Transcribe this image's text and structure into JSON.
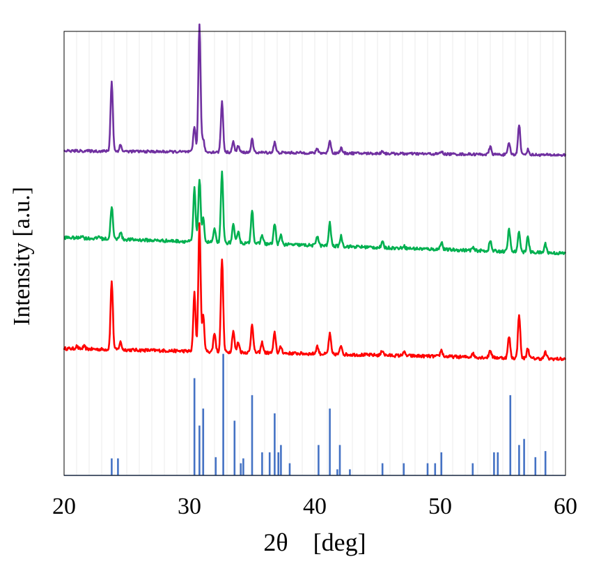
{
  "chart_data": {
    "type": "line",
    "xlabel": "2θ　[deg]",
    "ylabel": "Intensity [a.u.]",
    "xlim": [
      20,
      60
    ],
    "x_ticks": [
      20,
      30,
      40,
      50,
      60
    ],
    "grid": "vertical minor gridlines every 1 deg",
    "y_tick_labels": false,
    "colors": {
      "reference": "#4472C4",
      "sample_red": "#FF0000",
      "sample_green": "#00B050",
      "sample_purple": "#7030A0"
    },
    "reference_pattern": {
      "color": "#4472C4",
      "baseline": 0,
      "sticks": [
        {
          "x": 23.8,
          "y": 14
        },
        {
          "x": 24.3,
          "y": 14
        },
        {
          "x": 30.4,
          "y": 80
        },
        {
          "x": 30.8,
          "y": 41
        },
        {
          "x": 31.1,
          "y": 55
        },
        {
          "x": 32.1,
          "y": 15
        },
        {
          "x": 32.7,
          "y": 100
        },
        {
          "x": 33.6,
          "y": 45
        },
        {
          "x": 34.1,
          "y": 10
        },
        {
          "x": 34.3,
          "y": 14
        },
        {
          "x": 35.0,
          "y": 66
        },
        {
          "x": 35.8,
          "y": 19
        },
        {
          "x": 36.4,
          "y": 19
        },
        {
          "x": 36.8,
          "y": 51
        },
        {
          "x": 37.1,
          "y": 19
        },
        {
          "x": 37.3,
          "y": 25
        },
        {
          "x": 38.0,
          "y": 10
        },
        {
          "x": 40.3,
          "y": 25
        },
        {
          "x": 41.8,
          "y": 5
        },
        {
          "x": 41.2,
          "y": 55
        },
        {
          "x": 42.0,
          "y": 25
        },
        {
          "x": 42.8,
          "y": 5
        },
        {
          "x": 45.4,
          "y": 10
        },
        {
          "x": 47.1,
          "y": 10
        },
        {
          "x": 49.0,
          "y": 10
        },
        {
          "x": 49.6,
          "y": 10
        },
        {
          "x": 50.1,
          "y": 19
        },
        {
          "x": 52.6,
          "y": 10
        },
        {
          "x": 54.3,
          "y": 19
        },
        {
          "x": 54.6,
          "y": 19
        },
        {
          "x": 55.6,
          "y": 66
        },
        {
          "x": 56.3,
          "y": 25
        },
        {
          "x": 56.7,
          "y": 30
        },
        {
          "x": 57.6,
          "y": 15
        },
        {
          "x": 58.4,
          "y": 20
        }
      ]
    },
    "series": [
      {
        "color": "#FF0000",
        "offset": 100,
        "baseline_start": 20,
        "baseline_end": 10,
        "noise": 1.5,
        "peaks": [
          {
            "x": 21.0,
            "y": 2
          },
          {
            "x": 21.6,
            "y": 2
          },
          {
            "x": 23.8,
            "y": 54
          },
          {
            "x": 24.5,
            "y": 6
          },
          {
            "x": 30.4,
            "y": 46
          },
          {
            "x": 30.8,
            "y": 100
          },
          {
            "x": 31.1,
            "y": 28
          },
          {
            "x": 32.0,
            "y": 15
          },
          {
            "x": 32.6,
            "y": 74
          },
          {
            "x": 33.5,
            "y": 17
          },
          {
            "x": 33.9,
            "y": 8
          },
          {
            "x": 35.0,
            "y": 23
          },
          {
            "x": 35.8,
            "y": 8
          },
          {
            "x": 36.8,
            "y": 16
          },
          {
            "x": 37.3,
            "y": 5
          },
          {
            "x": 40.2,
            "y": 6
          },
          {
            "x": 41.2,
            "y": 16
          },
          {
            "x": 42.1,
            "y": 7
          },
          {
            "x": 45.4,
            "y": 4
          },
          {
            "x": 47.1,
            "y": 3
          },
          {
            "x": 50.1,
            "y": 5
          },
          {
            "x": 52.6,
            "y": 3
          },
          {
            "x": 54.0,
            "y": 6
          },
          {
            "x": 55.5,
            "y": 17
          },
          {
            "x": 56.3,
            "y": 35
          },
          {
            "x": 57.0,
            "y": 8
          },
          {
            "x": 58.4,
            "y": 5
          }
        ]
      },
      {
        "color": "#00B050",
        "offset": 200,
        "baseline_start": 25,
        "baseline_end": 10,
        "noise": 1.5,
        "peaks": [
          {
            "x": 21.4,
            "y": 2
          },
          {
            "x": 22.8,
            "y": 2
          },
          {
            "x": 23.8,
            "y": 26
          },
          {
            "x": 24.5,
            "y": 6
          },
          {
            "x": 30.4,
            "y": 42
          },
          {
            "x": 30.8,
            "y": 50
          },
          {
            "x": 31.1,
            "y": 18
          },
          {
            "x": 32.0,
            "y": 10
          },
          {
            "x": 32.6,
            "y": 55
          },
          {
            "x": 33.5,
            "y": 14
          },
          {
            "x": 33.9,
            "y": 10
          },
          {
            "x": 35.0,
            "y": 27
          },
          {
            "x": 35.8,
            "y": 7
          },
          {
            "x": 36.8,
            "y": 16
          },
          {
            "x": 37.3,
            "y": 7
          },
          {
            "x": 40.2,
            "y": 8
          },
          {
            "x": 41.2,
            "y": 18
          },
          {
            "x": 42.1,
            "y": 8
          },
          {
            "x": 45.4,
            "y": 4
          },
          {
            "x": 47.1,
            "y": 2
          },
          {
            "x": 50.1,
            "y": 6
          },
          {
            "x": 52.6,
            "y": 2
          },
          {
            "x": 54.0,
            "y": 8
          },
          {
            "x": 55.5,
            "y": 18
          },
          {
            "x": 56.3,
            "y": 16
          },
          {
            "x": 57.0,
            "y": 12
          },
          {
            "x": 58.4,
            "y": 7
          }
        ]
      },
      {
        "color": "#7030A0",
        "offset": 300,
        "baseline_start": 7,
        "baseline_end": 3,
        "noise": 1.2,
        "peaks": [
          {
            "x": 23.8,
            "y": 55
          },
          {
            "x": 24.5,
            "y": 5
          },
          {
            "x": 30.4,
            "y": 20
          },
          {
            "x": 30.8,
            "y": 100
          },
          {
            "x": 31.1,
            "y": 10
          },
          {
            "x": 32.6,
            "y": 40
          },
          {
            "x": 33.5,
            "y": 8
          },
          {
            "x": 33.9,
            "y": 5
          },
          {
            "x": 35.0,
            "y": 10
          },
          {
            "x": 36.8,
            "y": 8
          },
          {
            "x": 40.2,
            "y": 3
          },
          {
            "x": 41.2,
            "y": 10
          },
          {
            "x": 42.1,
            "y": 4
          },
          {
            "x": 45.4,
            "y": 2
          },
          {
            "x": 50.1,
            "y": 2
          },
          {
            "x": 54.0,
            "y": 6
          },
          {
            "x": 55.5,
            "y": 9
          },
          {
            "x": 56.3,
            "y": 24
          },
          {
            "x": 57.0,
            "y": 4
          }
        ]
      }
    ]
  }
}
